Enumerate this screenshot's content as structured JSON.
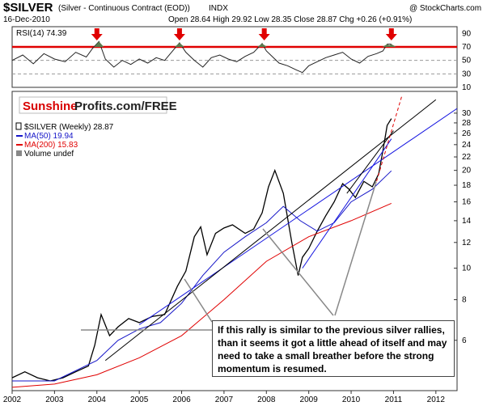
{
  "header": {
    "symbol": "$SILVER",
    "description": "(Silver - Continuous Contract (EOD))",
    "exchange": "INDX",
    "credit": "@ StockCharts.com",
    "date": "16-Dec-2010",
    "ohlc": "Open 28.64  High 29.92  Low 28.35  Close 28.87  Chg +0.26 (+0.91%)"
  },
  "colors": {
    "rsi_line": "#222222",
    "overbought_line": "#e00000",
    "price": "#000000",
    "ma50": "#1515c8",
    "ma200": "#e00000",
    "trend_blue": "#1414e0",
    "trend_red": "#e00000",
    "arrow": "#e00000",
    "fill_green": "#5a7e4f"
  },
  "watermark": {
    "part1": "Sunshine",
    "part2": "Profits.com/FREE"
  },
  "legend": [
    {
      "label": "$SILVER (Weekly) 28.87",
      "color": "#000000",
      "icon": "bar-icon"
    },
    {
      "label": "MA(50) 19.94",
      "color": "#1515c8",
      "icon": "line-icon"
    },
    {
      "label": "MA(200) 15.83",
      "color": "#e00000",
      "icon": "line-icon"
    },
    {
      "label": "Volume undef",
      "color": "#555555",
      "icon": "volume-icon"
    }
  ],
  "annotation": "If this rally is similar to the previous silver rallies, than it seems it got a little ahead of itself and may need to take a small breather before the strong momentum is resumed.",
  "chart_data": [
    {
      "type": "line",
      "panel": "rsi",
      "title": "RSI(14) 74.39",
      "ylim": [
        10,
        100
      ],
      "yticks": [
        90,
        70,
        50,
        30,
        10
      ],
      "overbought_level": 70,
      "arrow_dates": [
        2004.0,
        2005.95,
        2007.95,
        2010.95
      ],
      "x": [
        2002.0,
        2002.25,
        2002.5,
        2002.75,
        2003.0,
        2003.25,
        2003.5,
        2003.75,
        2003.9,
        2004.05,
        2004.2,
        2004.4,
        2004.6,
        2004.8,
        2005.0,
        2005.2,
        2005.4,
        2005.6,
        2005.8,
        2005.95,
        2006.1,
        2006.3,
        2006.5,
        2006.7,
        2006.9,
        2007.1,
        2007.3,
        2007.5,
        2007.7,
        2007.9,
        2008.0,
        2008.15,
        2008.3,
        2008.5,
        2008.7,
        2008.85,
        2009.0,
        2009.2,
        2009.4,
        2009.6,
        2009.8,
        2010.0,
        2010.2,
        2010.4,
        2010.6,
        2010.75,
        2010.85,
        2010.95
      ],
      "y": [
        50,
        58,
        45,
        60,
        52,
        48,
        62,
        55,
        68,
        78,
        52,
        40,
        50,
        44,
        52,
        46,
        54,
        50,
        65,
        76,
        62,
        50,
        40,
        54,
        58,
        52,
        48,
        56,
        62,
        75,
        64,
        55,
        46,
        42,
        36,
        32,
        42,
        48,
        54,
        58,
        62,
        52,
        46,
        56,
        60,
        64,
        74,
        74
      ]
    },
    {
      "type": "line",
      "panel": "price",
      "scale": "log",
      "ylim": [
        4.2,
        35
      ],
      "yticks": [
        30,
        28,
        26,
        24,
        22,
        20,
        18,
        16,
        14,
        12,
        10,
        8,
        6
      ],
      "xlim": [
        2002,
        2012.5
      ],
      "xticks": [
        "2002",
        "2003",
        "2004",
        "2005",
        "2006",
        "2007",
        "2008",
        "2009",
        "2010",
        "2011",
        "2012"
      ],
      "series": [
        {
          "name": "$SILVER (Weekly)",
          "x": [
            2002.0,
            2002.3,
            2002.6,
            2002.9,
            2003.2,
            2003.5,
            2003.8,
            2003.95,
            2004.1,
            2004.3,
            2004.5,
            2004.75,
            2005.0,
            2005.3,
            2005.6,
            2005.9,
            2006.1,
            2006.3,
            2006.45,
            2006.6,
            2006.8,
            2007.0,
            2007.2,
            2007.5,
            2007.7,
            2007.9,
            2008.05,
            2008.2,
            2008.4,
            2008.6,
            2008.75,
            2008.85,
            2009.0,
            2009.2,
            2009.4,
            2009.6,
            2009.8,
            2009.95,
            2010.1,
            2010.3,
            2010.5,
            2010.65,
            2010.75,
            2010.85,
            2010.95
          ],
          "y": [
            4.6,
            4.8,
            4.6,
            4.5,
            4.6,
            4.8,
            5.0,
            5.8,
            7.2,
            6.2,
            6.6,
            7.0,
            6.8,
            7.1,
            7.2,
            8.8,
            9.8,
            12.5,
            13.4,
            11.0,
            12.8,
            13.3,
            13.6,
            12.8,
            13.2,
            14.8,
            17.8,
            20.0,
            17.0,
            12.0,
            9.5,
            10.8,
            11.5,
            13.0,
            14.5,
            16.0,
            18.2,
            17.5,
            16.5,
            18.5,
            17.8,
            19.5,
            23.0,
            27.5,
            28.87
          ]
        },
        {
          "name": "MA(50)",
          "x": [
            2002.0,
            2003.0,
            2004.0,
            2004.5,
            2005.0,
            2005.5,
            2006.0,
            2006.5,
            2007.0,
            2007.5,
            2008.0,
            2008.4,
            2008.8,
            2009.2,
            2009.6,
            2010.0,
            2010.5,
            2010.95
          ],
          "y": [
            4.5,
            4.5,
            5.2,
            6.0,
            6.5,
            6.8,
            7.8,
            9.5,
            11.2,
            12.5,
            13.8,
            15.5,
            14.0,
            13.0,
            13.8,
            16.0,
            17.5,
            19.94
          ]
        },
        {
          "name": "MA(200)",
          "x": [
            2002.0,
            2003.0,
            2004.0,
            2005.0,
            2006.0,
            2007.0,
            2008.0,
            2009.0,
            2010.0,
            2010.95
          ],
          "y": [
            4.3,
            4.4,
            4.7,
            5.3,
            6.2,
            8.0,
            10.5,
            12.5,
            14.0,
            15.83
          ]
        }
      ],
      "trendlines": [
        {
          "color": "blue",
          "x": [
            2005.0,
            2012.5
          ],
          "y": [
            6.7,
            31.0
          ]
        },
        {
          "color": "blue",
          "x": [
            2008.85,
            2010.95
          ],
          "y": [
            10.0,
            25.0
          ]
        },
        {
          "color": "black",
          "x": [
            2004.2,
            2012.0
          ],
          "y": [
            5.2,
            33.0
          ]
        },
        {
          "color": "black",
          "x": [
            2009.9,
            2011.0
          ],
          "y": [
            17.0,
            26.5
          ]
        },
        {
          "color": "red-dashed",
          "x": [
            2010.6,
            2011.2
          ],
          "y": [
            18.5,
            34.0
          ]
        }
      ]
    }
  ]
}
